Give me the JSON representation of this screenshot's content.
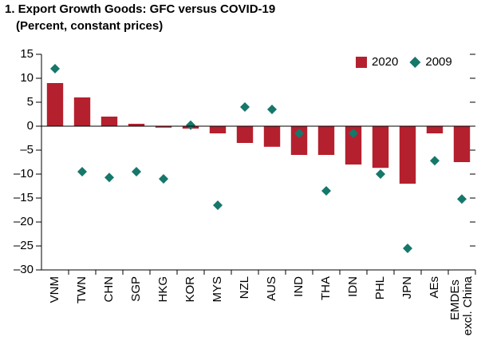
{
  "chart_data": {
    "type": "bar",
    "title": "1. Export Growth Goods: GFC versus COVID-19",
    "subtitle": "(Percent, constant prices)",
    "categories": [
      "VNM",
      "TWN",
      "CHN",
      "SGP",
      "HKG",
      "KOR",
      "MYS",
      "NZL",
      "AUS",
      "IND",
      "THA",
      "IDN",
      "PHL",
      "JPN",
      "AEs",
      "EMDEs excl. China"
    ],
    "series": [
      {
        "name": "2020",
        "color": "#b5202e",
        "marker": "bar",
        "values": [
          9,
          6,
          2,
          0.5,
          -0.3,
          -0.5,
          -1.5,
          -3.5,
          -4.3,
          -6,
          -6,
          -8,
          -8.7,
          -12,
          -1.5,
          -7.5
        ]
      },
      {
        "name": "2009",
        "color": "#16776b",
        "marker": "diamond",
        "values": [
          12,
          -9.5,
          -10.7,
          -9.5,
          -11,
          0.2,
          -16.5,
          4,
          3.5,
          -1.5,
          -13.5,
          -1.5,
          -10,
          -25.5,
          -7.2,
          -15.2
        ]
      }
    ],
    "ylim": [
      -30,
      15
    ],
    "yticks": [
      {
        "value": -30,
        "label": "–30"
      },
      {
        "value": -25,
        "label": "–25"
      },
      {
        "value": -20,
        "label": "–20"
      },
      {
        "value": -15,
        "label": "–15"
      },
      {
        "value": -10,
        "label": "–10"
      },
      {
        "value": -5,
        "label": "–5"
      },
      0,
      5,
      10,
      15
    ],
    "legend": "top-right"
  }
}
